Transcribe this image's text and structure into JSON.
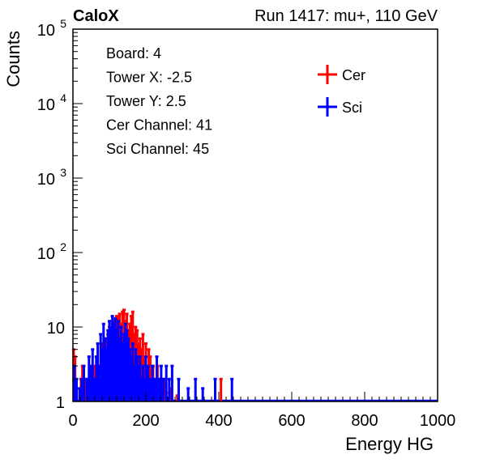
{
  "chart_data": {
    "type": "line",
    "header": {
      "left": "CaloX",
      "right": "Run 1417: mu+, 110 GeV"
    },
    "xlabel": "Energy HG",
    "ylabel": "Counts",
    "xlim": [
      0,
      1000
    ],
    "ylim": [
      1,
      100000
    ],
    "y_scale": "log",
    "x_ticks": [
      "0",
      "200",
      "400",
      "600",
      "800",
      "1000"
    ],
    "y_ticks": [
      {
        "base": "1",
        "exp": ""
      },
      {
        "base": "10",
        "exp": ""
      },
      {
        "base": "10",
        "exp": "2"
      },
      {
        "base": "10",
        "exp": "3"
      },
      {
        "base": "10",
        "exp": "4"
      },
      {
        "base": "10",
        "exp": "5"
      }
    ],
    "grid": false,
    "info_lines": [
      "Board: 4",
      "Tower X: -2.5",
      "Tower Y: 2.5",
      "Cer Channel: 41",
      "Sci Channel: 45"
    ],
    "legend_position": "top-right",
    "series": [
      {
        "name": "Cer",
        "color": "#ff0000",
        "x": [
          2,
          6,
          22,
          26,
          36,
          46,
          52,
          58,
          66,
          74,
          80,
          86,
          92,
          96,
          100,
          104,
          108,
          112,
          116,
          120,
          124,
          128,
          132,
          136,
          140,
          144,
          148,
          152,
          156,
          160,
          164,
          168,
          172,
          176,
          180,
          184,
          188,
          192,
          196,
          200,
          204,
          208,
          212,
          216,
          220,
          226,
          232,
          238,
          244,
          250,
          256,
          266,
          286,
          390,
          406
        ],
        "y": [
          5,
          4,
          2,
          3,
          2,
          3,
          2,
          3,
          4,
          3,
          6,
          5,
          7,
          8,
          10,
          8,
          11,
          12,
          9,
          14,
          13,
          15,
          11,
          16,
          17,
          12,
          15,
          9,
          11,
          14,
          16,
          8,
          10,
          9,
          6,
          7,
          5,
          8,
          4,
          6,
          3,
          5,
          4,
          2,
          3,
          2,
          3,
          2,
          1.5,
          2,
          1.3,
          1.5,
          1.2,
          2,
          2
        ]
      },
      {
        "name": "Sci",
        "color": "#0000ff",
        "x": [
          4,
          10,
          18,
          24,
          30,
          38,
          44,
          50,
          54,
          60,
          64,
          68,
          72,
          76,
          80,
          84,
          88,
          92,
          96,
          100,
          104,
          108,
          112,
          116,
          120,
          124,
          128,
          132,
          136,
          140,
          144,
          148,
          152,
          156,
          160,
          164,
          168,
          172,
          176,
          180,
          184,
          188,
          192,
          196,
          200,
          206,
          212,
          218,
          224,
          230,
          236,
          242,
          248,
          256,
          264,
          272,
          290,
          316,
          336,
          356,
          390,
          436
        ],
        "y": [
          3,
          2,
          1.5,
          2,
          3,
          2,
          4,
          3,
          5,
          2,
          4,
          6,
          3,
          8,
          5,
          11,
          7,
          5,
          9,
          12,
          10,
          14,
          11,
          13,
          9,
          12,
          7,
          10,
          6,
          8,
          11,
          9,
          7,
          5,
          4,
          6,
          3,
          5,
          4,
          3,
          4,
          2,
          3,
          2,
          4,
          3,
          2,
          3,
          2,
          4,
          2,
          3,
          2,
          3,
          2,
          3,
          2,
          1.5,
          2,
          1.5,
          2,
          2
        ]
      }
    ]
  }
}
